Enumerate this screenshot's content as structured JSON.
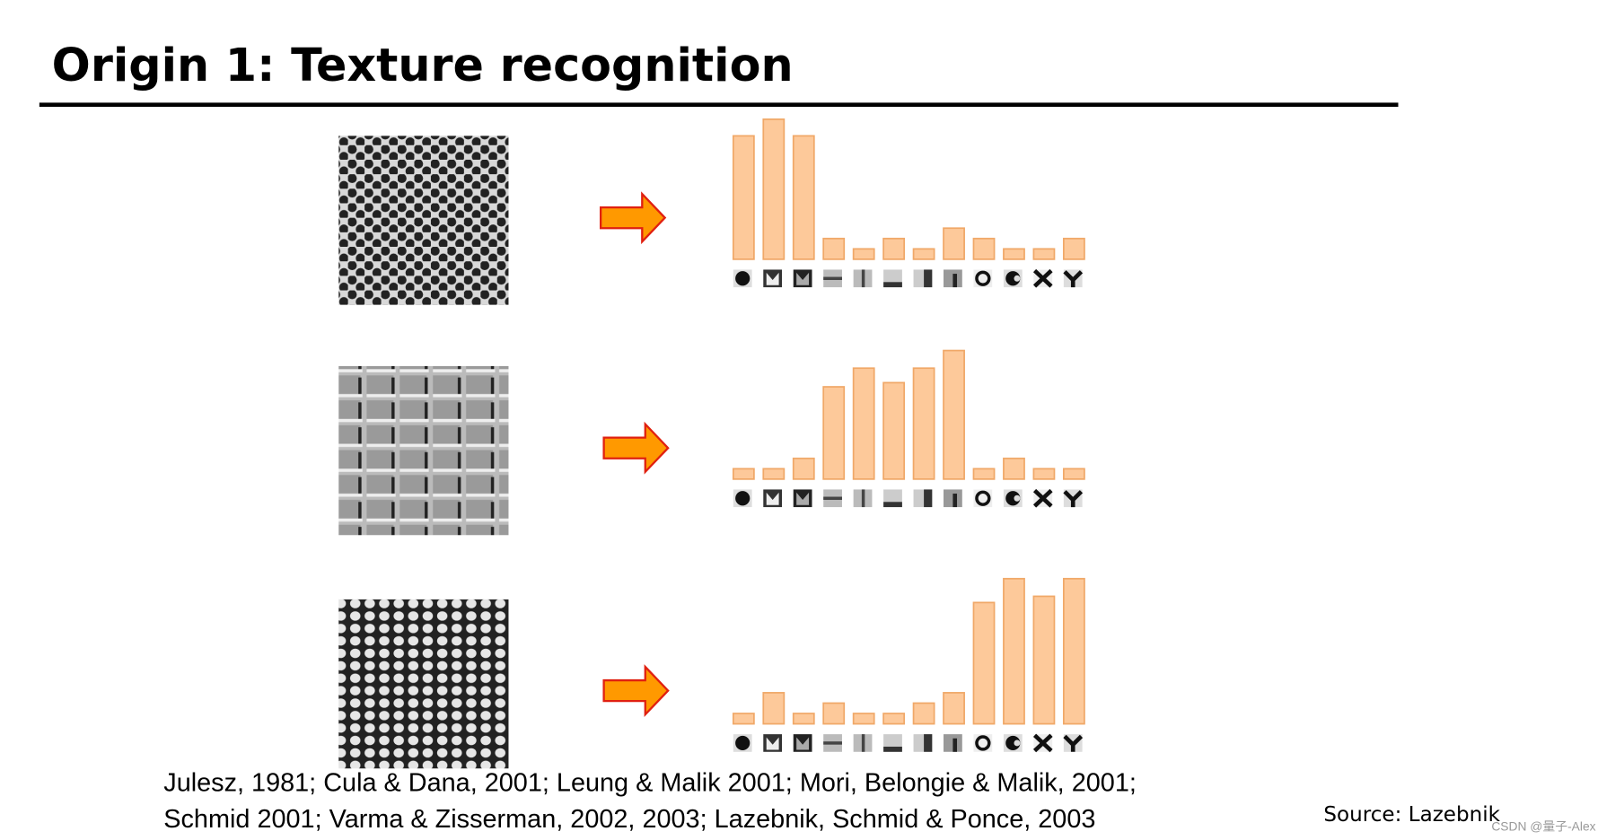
{
  "title": "Origin 1: Texture recognition",
  "chart_data": [
    {
      "type": "bar",
      "values": [
        119,
        135,
        119,
        20,
        10,
        20,
        10,
        30,
        20,
        10,
        10,
        20
      ],
      "color": "#fdc99a",
      "ylim": [
        0,
        140
      ]
    },
    {
      "type": "bar",
      "values": [
        10,
        10,
        20,
        89,
        107,
        93,
        107,
        124,
        10,
        20,
        10,
        10
      ],
      "color": "#fdc99a",
      "ylim": [
        0,
        140
      ]
    },
    {
      "type": "bar",
      "values": [
        10,
        30,
        10,
        20,
        10,
        10,
        20,
        30,
        117,
        140,
        123,
        140
      ],
      "color": "#fdc99a",
      "ylim": [
        0,
        140
      ]
    }
  ],
  "citation": [
    "Julesz, 1981; Cula & Dana, 2001; Leung & Malik 2001; Mori, Belongie & Malik, 2001;",
    "Schmid 2001; Varma & Zisserman, 2002, 2003; Lazebnik, Schmid & Ponce, 2003"
  ],
  "source": "Source: Lazebnik",
  "watermark": "CSDN @量子-Alex"
}
